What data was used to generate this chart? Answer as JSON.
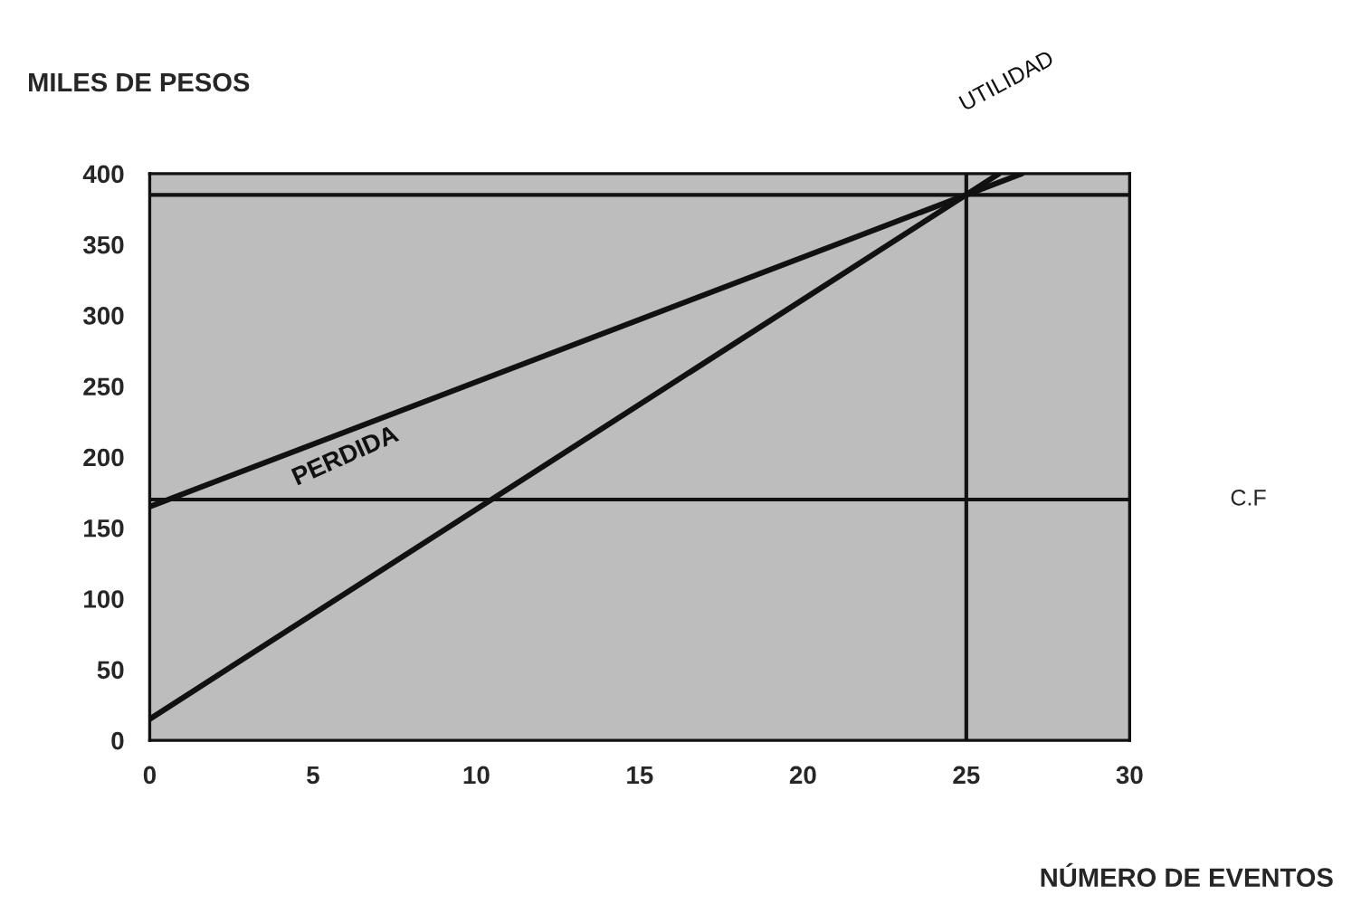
{
  "chart_data": {
    "type": "line",
    "xlabel": "NÚMERO DE EVENTOS",
    "ylabel": "MILES DE PESOS",
    "series": [
      {
        "color": "#111111",
        "x": [
          0,
          26
        ],
        "values": [
          15,
          400
        ]
      },
      {
        "color": "#111111",
        "x": [
          0,
          26.7
        ],
        "values": [
          165,
          400
        ]
      }
    ],
    "xlim": [
      0,
      30
    ],
    "ylim": [
      0,
      400
    ],
    "xticks": [
      0,
      5,
      10,
      15,
      20,
      25,
      30
    ],
    "yticks": [
      0,
      50,
      100,
      150,
      200,
      250,
      300,
      350,
      400
    ],
    "ref_lines": [
      {
        "axis": "y",
        "value": 170,
        "label": "C.F",
        "color": "#111111"
      },
      {
        "axis": "y",
        "value": 385,
        "color": "#111111"
      },
      {
        "axis": "x",
        "value": 25,
        "color": "#111111"
      }
    ],
    "annotations": [
      "PERDIDA",
      "UTILIDAD"
    ],
    "grid": false,
    "legend": false,
    "marker": "none",
    "line_style": "solid"
  }
}
